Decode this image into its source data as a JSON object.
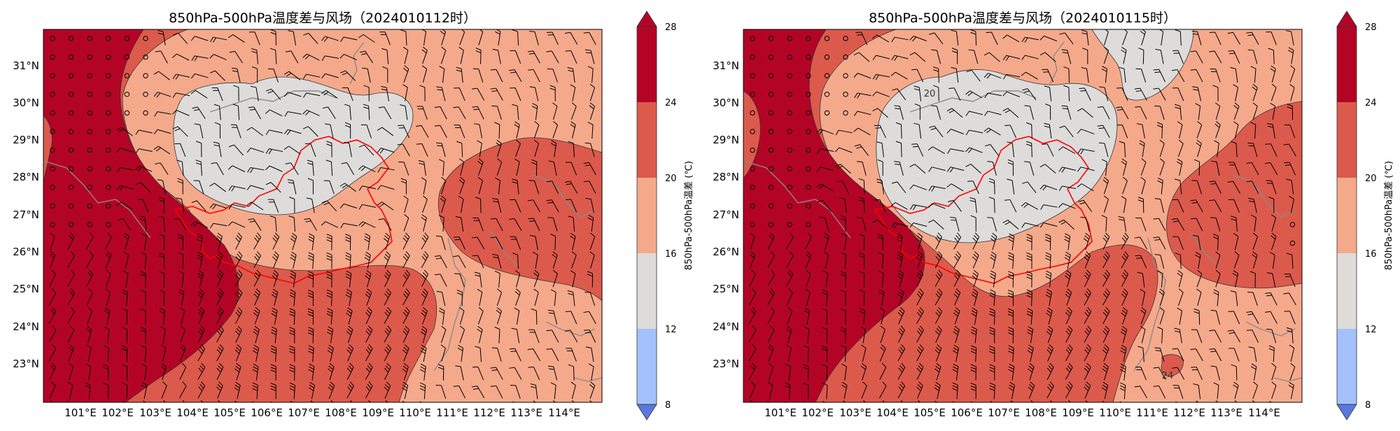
{
  "maps": [
    {
      "title": "850hPa-500hPa温度差与风场（2024010112时）",
      "colorbar": {
        "label": "850hPa-500hPa温差 (℃)",
        "levels": [
          8,
          12,
          16,
          20,
          24,
          28
        ],
        "extend": "both"
      }
    },
    {
      "title": "850hPa-500hPa温度差与风场（2024010115时）",
      "colorbar": {
        "label": "850hPa-500hPa温差 (℃)",
        "levels": [
          8,
          12,
          16,
          20,
          24,
          28
        ],
        "extend": "both"
      }
    }
  ],
  "axes": {
    "lat_labels": [
      "31°N",
      "30°N",
      "29°N",
      "28°N",
      "27°N",
      "26°N",
      "25°N",
      "24°N",
      "23°N"
    ],
    "lon_labels": [
      "101°E",
      "102°E",
      "103°E",
      "104°E",
      "105°E",
      "106°E",
      "107°E",
      "108°E",
      "109°E",
      "110°E",
      "111°E",
      "112°E",
      "113°E",
      "114°E"
    ],
    "lat_range": [
      22,
      32
    ],
    "lon_range": [
      100,
      115
    ]
  },
  "contour_labels": {
    "right_20": "20",
    "right_24": "24"
  },
  "colors": {
    "c8_12": "#5a78e0",
    "c12_16": "#a5c1fb",
    "c16_20": "#dddcdb",
    "c20_24": "#f5a98b",
    "c24_28": "#dc5a4c",
    "c28_up": "#b40426",
    "border_red": "#ff0000",
    "border_grey": "#888888"
  }
}
